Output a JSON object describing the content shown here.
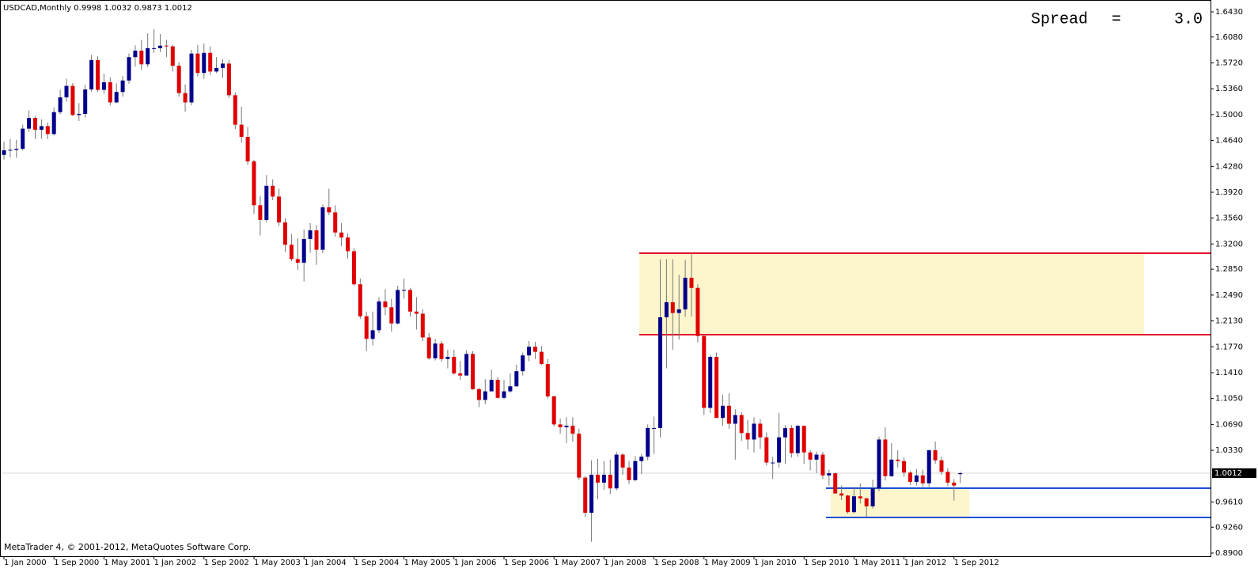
{
  "chart_data": {
    "type": "candlestick",
    "title": "USDCAD,Monthly",
    "footer": "MetaTrader 4, © 2001-2012, MetaQuotes Software Corp.",
    "annotations": [
      "Spread",
      "=",
      "3.0"
    ],
    "bull_color": "#00008b",
    "bear_color": "#e00000",
    "wick_color": "#777777",
    "categories": [
      "1 Jan 2000",
      null,
      null,
      null,
      null,
      null,
      null,
      null,
      "1 Sep 2000",
      null,
      null,
      null,
      null,
      null,
      null,
      null,
      "1 May 2001",
      null,
      null,
      null,
      null,
      null,
      null,
      null,
      "1 Jan 2002",
      null,
      null,
      null,
      null,
      null,
      null,
      null,
      "1 Sep 2002",
      null,
      null,
      null,
      null,
      null,
      null,
      null,
      "1 May 2003",
      null,
      null,
      null,
      null,
      null,
      null,
      null,
      "1 Jan 2004",
      null,
      null,
      null,
      null,
      null,
      null,
      null,
      "1 Sep 2004",
      null,
      null,
      null,
      null,
      null,
      null,
      null,
      "1 May 2005",
      null,
      null,
      null,
      null,
      null,
      null,
      null,
      "1 Jan 2006",
      null,
      null,
      null,
      null,
      null,
      null,
      null,
      "1 Sep 2006",
      null,
      null,
      null,
      null,
      null,
      null,
      null,
      "1 May 2007",
      null,
      null,
      null,
      null,
      null,
      null,
      null,
      "1 Jan 2008",
      null,
      null,
      null,
      null,
      null,
      null,
      null,
      "1 Sep 2008",
      null,
      null,
      null,
      null,
      null,
      null,
      null,
      "1 May 2009",
      null,
      null,
      null,
      null,
      null,
      null,
      null,
      "1 Jan 2010",
      null,
      null,
      null,
      null,
      null,
      null,
      null,
      "1 Sep 2010",
      null,
      null,
      null,
      null,
      null,
      null,
      null,
      "1 May 2011",
      null,
      null,
      null,
      null,
      null,
      null,
      null,
      "1 Jan 2012",
      null,
      null,
      null,
      null,
      null,
      null,
      null,
      "1 Sep 2012",
      null
    ],
    "open": [
      1.444,
      1.4505,
      1.451,
      1.4525,
      1.4805,
      1.4955,
      1.479,
      1.484,
      1.473,
      1.5035,
      1.524,
      1.54,
      1.4995,
      1.501,
      1.535,
      1.576,
      1.5345,
      1.545,
      1.517,
      1.5315,
      1.5475,
      1.58,
      1.589,
      1.57,
      1.5925,
      1.5925,
      1.596,
      1.595,
      1.568,
      1.53,
      1.517,
      1.585,
      1.558,
      1.586,
      1.56,
      1.565,
      1.571,
      1.527,
      1.486,
      1.469,
      1.435,
      1.374,
      1.3535,
      1.401,
      1.386,
      1.35,
      1.319,
      1.299,
      1.294,
      1.327,
      1.339,
      1.312,
      1.371,
      1.364,
      1.336,
      1.329,
      1.31,
      1.264,
      1.2195,
      1.188,
      1.2,
      1.24,
      1.232,
      1.2095,
      1.256,
      1.256,
      1.226,
      1.223,
      1.19,
      1.161,
      1.1815,
      1.16,
      1.163,
      1.14,
      1.137,
      1.167,
      1.118,
      1.103,
      1.115,
      1.131,
      1.106,
      1.115,
      1.122,
      1.143,
      1.165,
      1.177,
      1.17,
      1.153,
      1.108,
      1.069,
      1.065,
      1.067,
      1.056,
      0.995,
      0.946,
      0.999,
      0.988,
      0.999,
      0.98,
      1.027,
      1.009,
      0.9915,
      1.018,
      1.024,
      1.064,
      1.064,
      1.218,
      1.239,
      1.224,
      1.229,
      1.273,
      1.259,
      1.192,
      1.092,
      1.163,
      1.078,
      1.095,
      1.07,
      1.082,
      1.057,
      1.048,
      1.07,
      1.051,
      1.016,
      1.016,
      1.051,
      1.064,
      1.029,
      1.067,
      1.03,
      1.02,
      1.027,
      0.998,
      1.001,
      0.973,
      0.97,
      0.947,
      0.969,
      0.966,
      0.955,
      0.98,
      1.048,
      0.997,
      1.02,
      1.018,
      1.002,
      0.989,
      0.998,
      0.987,
      1.033,
      1.019,
      1.003,
      0.988,
      0.9998
    ],
    "high": [
      1.4625,
      1.466,
      1.465,
      1.486,
      1.506,
      1.498,
      1.4935,
      1.489,
      1.51,
      1.5345,
      1.55,
      1.544,
      1.516,
      1.5415,
      1.583,
      1.581,
      1.557,
      1.552,
      1.5435,
      1.5535,
      1.585,
      1.5965,
      1.604,
      1.613,
      1.619,
      1.612,
      1.604,
      1.597,
      1.573,
      1.542,
      1.59,
      1.597,
      1.599,
      1.595,
      1.58,
      1.577,
      1.576,
      1.531,
      1.511,
      1.483,
      1.437,
      1.387,
      1.416,
      1.41,
      1.397,
      1.356,
      1.334,
      1.328,
      1.34,
      1.349,
      1.346,
      1.375,
      1.397,
      1.374,
      1.349,
      1.335,
      1.314,
      1.272,
      1.226,
      1.226,
      1.246,
      1.257,
      1.244,
      1.262,
      1.272,
      1.259,
      1.246,
      1.229,
      1.196,
      1.188,
      1.185,
      1.173,
      1.173,
      1.157,
      1.172,
      1.171,
      1.12,
      1.132,
      1.145,
      1.135,
      1.131,
      1.14,
      1.152,
      1.169,
      1.185,
      1.184,
      1.178,
      1.16,
      1.109,
      1.077,
      1.079,
      1.079,
      1.063,
      0.997,
      1.019,
      1.021,
      1.018,
      1.02,
      1.031,
      1.029,
      1.018,
      1.025,
      1.028,
      1.069,
      1.08,
      1.2985,
      1.299,
      1.299,
      1.277,
      1.298,
      1.306,
      1.264,
      1.194,
      1.166,
      1.169,
      1.11,
      1.112,
      1.09,
      1.086,
      1.075,
      1.079,
      1.076,
      1.058,
      1.024,
      1.085,
      1.068,
      1.068,
      1.068,
      1.067,
      1.033,
      1.031,
      1.031,
      1.006,
      1.002,
      0.984,
      0.971,
      0.982,
      0.987,
      0.967,
      0.992,
      1.052,
      1.065,
      1.043,
      1.033,
      1.023,
      1.004,
      1.007,
      1.006,
      1.034,
      1.045,
      1.024,
      1.008,
      0.993,
      1.0032
    ],
    "low": [
      1.4375,
      1.4405,
      1.44,
      1.45,
      1.476,
      1.466,
      1.4665,
      1.466,
      1.471,
      1.5005,
      1.518,
      1.498,
      1.491,
      1.496,
      1.532,
      1.532,
      1.529,
      1.513,
      1.516,
      1.525,
      1.543,
      1.567,
      1.562,
      1.566,
      1.586,
      1.587,
      1.58,
      1.56,
      1.525,
      1.504,
      1.513,
      1.553,
      1.55,
      1.555,
      1.558,
      1.551,
      1.523,
      1.48,
      1.461,
      1.43,
      1.362,
      1.332,
      1.35,
      1.381,
      1.345,
      1.309,
      1.296,
      1.284,
      1.268,
      1.308,
      1.291,
      1.307,
      1.36,
      1.33,
      1.317,
      1.3,
      1.262,
      1.216,
      1.171,
      1.179,
      1.196,
      1.221,
      1.198,
      1.208,
      1.244,
      1.219,
      1.201,
      1.185,
      1.159,
      1.158,
      1.156,
      1.147,
      1.138,
      1.131,
      1.137,
      1.117,
      1.093,
      1.097,
      1.115,
      1.105,
      1.104,
      1.113,
      1.121,
      1.137,
      1.157,
      1.16,
      1.152,
      1.105,
      1.066,
      1.056,
      1.043,
      1.045,
      0.992,
      0.94,
      0.9058,
      0.965,
      0.978,
      0.972,
      0.977,
      0.999,
      0.986,
      0.99,
      1.0,
      1.019,
      1.028,
      1.051,
      1.147,
      1.173,
      1.187,
      1.219,
      1.219,
      1.183,
      1.082,
      1.085,
      1.078,
      1.067,
      1.063,
      1.02,
      1.046,
      1.034,
      1.03,
      1.035,
      1.012,
      0.993,
      1.009,
      1.014,
      1.023,
      1.024,
      1.014,
      1.005,
      1.001,
      0.993,
      0.984,
      0.972,
      0.964,
      0.945,
      0.945,
      0.959,
      0.9406,
      0.952,
      0.976,
      0.991,
      0.996,
      1.009,
      0.996,
      0.985,
      0.984,
      0.982,
      0.982,
      1.014,
      0.999,
      0.983,
      0.963,
      0.9873
    ],
    "close": [
      1.4505,
      1.451,
      1.4525,
      1.4805,
      1.4955,
      1.479,
      1.484,
      1.473,
      1.5035,
      1.524,
      1.54,
      1.4995,
      1.501,
      1.535,
      1.576,
      1.5345,
      1.545,
      1.517,
      1.5315,
      1.5475,
      1.58,
      1.589,
      1.57,
      1.5925,
      1.5925,
      1.596,
      1.595,
      1.568,
      1.53,
      1.517,
      1.585,
      1.558,
      1.586,
      1.56,
      1.565,
      1.571,
      1.527,
      1.486,
      1.469,
      1.435,
      1.374,
      1.3535,
      1.401,
      1.386,
      1.35,
      1.319,
      1.299,
      1.294,
      1.327,
      1.339,
      1.312,
      1.371,
      1.364,
      1.336,
      1.329,
      1.31,
      1.264,
      1.2195,
      1.188,
      1.2,
      1.24,
      1.232,
      1.2095,
      1.256,
      1.256,
      1.226,
      1.223,
      1.19,
      1.161,
      1.1815,
      1.16,
      1.163,
      1.14,
      1.137,
      1.167,
      1.118,
      1.103,
      1.115,
      1.131,
      1.106,
      1.115,
      1.122,
      1.143,
      1.165,
      1.177,
      1.17,
      1.153,
      1.108,
      1.069,
      1.065,
      1.067,
      1.056,
      0.995,
      0.946,
      0.999,
      0.988,
      0.999,
      0.98,
      1.027,
      1.009,
      0.9915,
      1.018,
      1.024,
      1.064,
      1.064,
      1.218,
      1.239,
      1.224,
      1.229,
      1.273,
      1.259,
      1.192,
      1.092,
      1.163,
      1.078,
      1.095,
      1.07,
      1.082,
      1.057,
      1.048,
      1.07,
      1.051,
      1.016,
      1.016,
      1.051,
      1.064,
      1.029,
      1.067,
      1.03,
      1.02,
      1.027,
      0.998,
      1.001,
      0.973,
      0.97,
      0.947,
      0.969,
      0.966,
      0.955,
      0.98,
      1.048,
      0.997,
      1.02,
      1.018,
      1.002,
      0.989,
      0.998,
      0.987,
      1.033,
      1.019,
      1.003,
      0.988,
      0.984,
      1.0012
    ],
    "ylim": [
      0.8856,
      1.6595
    ],
    "yticks": [
      {
        "value": 1.643,
        "label": "1.6430"
      },
      {
        "value": 1.608,
        "label": "1.6080"
      },
      {
        "value": 1.572,
        "label": "1.5720"
      },
      {
        "value": 1.536,
        "label": "1.5360"
      },
      {
        "value": 1.5,
        "label": "1.5000"
      },
      {
        "value": 1.464,
        "label": "1.4640"
      },
      {
        "value": 1.428,
        "label": "1.4280"
      },
      {
        "value": 1.392,
        "label": "1.3920"
      },
      {
        "value": 1.356,
        "label": "1.3560"
      },
      {
        "value": 1.32,
        "label": "1.3200"
      },
      {
        "value": 1.285,
        "label": "1.2850"
      },
      {
        "value": 1.249,
        "label": "1.2490"
      },
      {
        "value": 1.213,
        "label": "1.2130"
      },
      {
        "value": 1.177,
        "label": "1.1770"
      },
      {
        "value": 1.141,
        "label": "1.1410"
      },
      {
        "value": 1.105,
        "label": "1.1050"
      },
      {
        "value": 1.069,
        "label": "1.0690"
      },
      {
        "value": 1.033,
        "label": "1.0330"
      },
      {
        "value": 0.961,
        "label": "0.9610"
      },
      {
        "value": 0.926,
        "label": "0.9260"
      },
      {
        "value": 0.89,
        "label": "0.8900"
      }
    ],
    "zones": [
      {
        "top": 1.3072,
        "bottom": 1.1939,
        "fill": "#fdf6cc"
      },
      {
        "top": 0.9803,
        "bottom": 0.9396,
        "fill": "#fdf6cc"
      }
    ],
    "lines": [
      {
        "value": 1.3072,
        "color": "#e0102a"
      },
      {
        "value": 1.1939,
        "color": "#e0102a"
      },
      {
        "value": 0.9803,
        "color": "#1a4fd6"
      },
      {
        "value": 0.9396,
        "color": "#1a4fd6"
      }
    ]
  }
}
